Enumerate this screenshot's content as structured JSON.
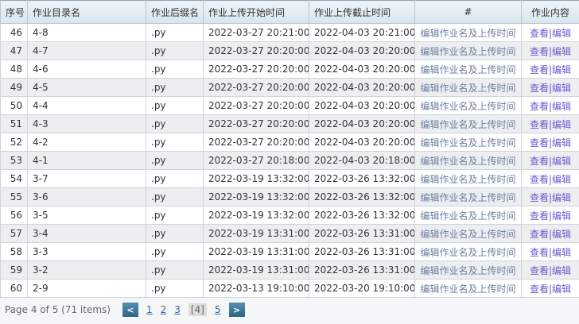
{
  "columns": [
    "序号",
    "作业目录名",
    "作业后缀名",
    "作业上传开始时间",
    "作业上传截止时间",
    "#",
    "作业内容"
  ],
  "rows": [
    {
      "id": "46",
      "dir": "4-8",
      "ext": ".py",
      "start": "2022-03-27 20:21:00",
      "end": "2022-04-03 20:21:00"
    },
    {
      "id": "47",
      "dir": "4-7",
      "ext": ".py",
      "start": "2022-03-27 20:20:00",
      "end": "2022-04-03 20:20:00"
    },
    {
      "id": "48",
      "dir": "4-6",
      "ext": ".py",
      "start": "2022-03-27 20:20:00",
      "end": "2022-04-03 20:20:00"
    },
    {
      "id": "49",
      "dir": "4-5",
      "ext": ".py",
      "start": "2022-03-27 20:20:00",
      "end": "2022-04-03 20:20:00"
    },
    {
      "id": "50",
      "dir": "4-4",
      "ext": ".py",
      "start": "2022-03-27 20:20:00",
      "end": "2022-04-03 20:20:00"
    },
    {
      "id": "51",
      "dir": "4-3",
      "ext": ".py",
      "start": "2022-03-27 20:20:00",
      "end": "2022-04-03 20:20:00"
    },
    {
      "id": "52",
      "dir": "4-2",
      "ext": ".py",
      "start": "2022-03-27 20:20:00",
      "end": "2022-04-03 20:20:00"
    },
    {
      "id": "53",
      "dir": "4-1",
      "ext": ".py",
      "start": "2022-03-27 20:18:00",
      "end": "2022-04-03 20:18:00"
    },
    {
      "id": "54",
      "dir": "3-7",
      "ext": ".py",
      "start": "2022-03-19 13:32:00",
      "end": "2022-03-26 13:32:00"
    },
    {
      "id": "55",
      "dir": "3-6",
      "ext": ".py",
      "start": "2022-03-19 13:32:00",
      "end": "2022-03-26 13:32:00"
    },
    {
      "id": "56",
      "dir": "3-5",
      "ext": ".py",
      "start": "2022-03-19 13:32:00",
      "end": "2022-03-26 13:32:00"
    },
    {
      "id": "57",
      "dir": "3-4",
      "ext": ".py",
      "start": "2022-03-19 13:31:00",
      "end": "2022-03-26 13:31:00"
    },
    {
      "id": "58",
      "dir": "3-3",
      "ext": ".py",
      "start": "2022-03-19 13:31:00",
      "end": "2022-03-26 13:31:00"
    },
    {
      "id": "59",
      "dir": "3-2",
      "ext": ".py",
      "start": "2022-03-19 13:31:00",
      "end": "2022-03-26 13:31:00"
    },
    {
      "id": "60",
      "dir": "2-9",
      "ext": ".py",
      "start": "2022-03-13 19:10:00",
      "end": "2022-03-20 19:10:00"
    }
  ],
  "edit_meta_label": "编辑作业名及上传时间",
  "view_label": "查看",
  "sep": "|",
  "edit_label": "编辑",
  "pager": {
    "summary": "Page 4 of 5 (71 items)",
    "prev_icon": "chevron-left-icon",
    "next_icon": "chevron-right-icon",
    "prev": "<",
    "next": ">",
    "pages": [
      "1",
      "2",
      "3",
      "[4]",
      "5"
    ],
    "current": "[4]"
  }
}
